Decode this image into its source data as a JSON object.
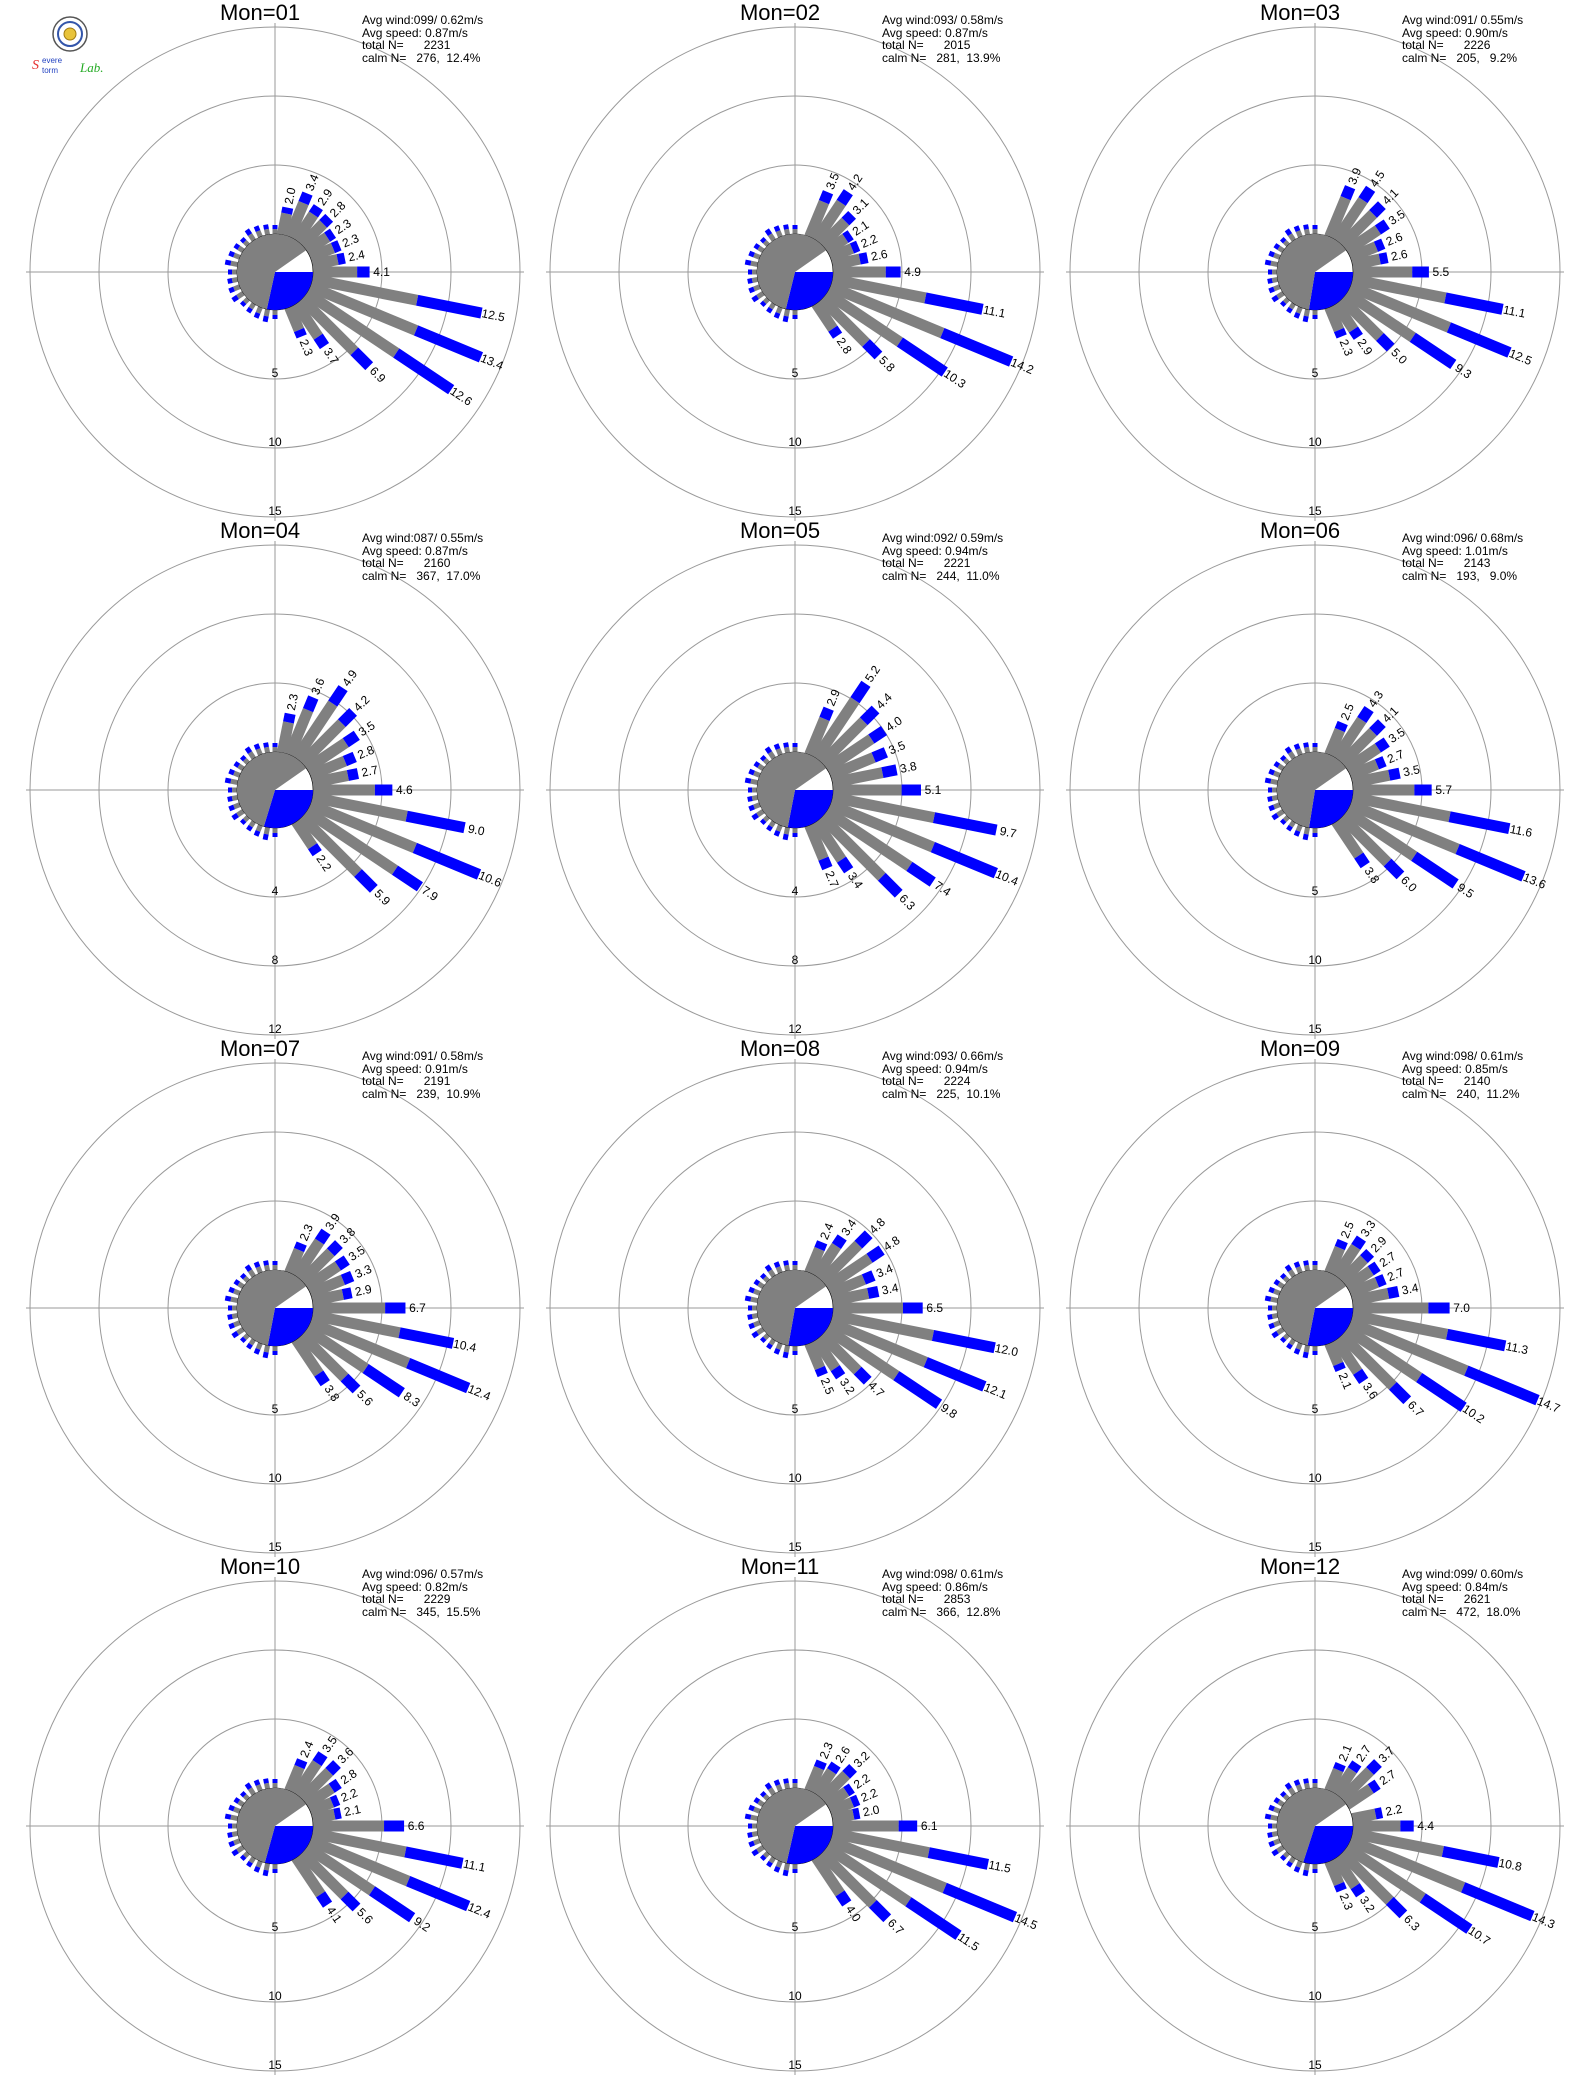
{
  "logo": {
    "text_a": "Severe",
    "text_b": "Storm",
    "text_c": "Lab."
  },
  "colors": {
    "speed_low": "#808080",
    "speed_mid": "#0000ff",
    "speed_high": "#00aa00",
    "ring": "#9a9a9a",
    "calm_gray": "#808080",
    "calm_blue": "#0000ff"
  },
  "chart_data": [
    {
      "type": "wind-rose",
      "title": "Mon=01",
      "stats": {
        "avg_wind": "Avg wind:099/ 0.62m/s",
        "avg_speed": "Avg speed: 0.87m/s",
        "total": "total N=      2231",
        "calm": "calm N=   276,  12.4%"
      },
      "rlim": [
        0,
        15
      ],
      "ring_labels": [
        "5",
        "10",
        "15"
      ],
      "directions_deg": [
        112.5,
        123.75,
        135,
        146.25,
        157.5,
        90,
        101.25,
        78.75,
        67.5,
        56.25,
        45,
        33.75,
        22.5,
        11.25
      ],
      "values": [
        13.4,
        12.6,
        6.9,
        3.7,
        2.3,
        4.1,
        12.5,
        2.4,
        2.3,
        2.3,
        2.8,
        2.9,
        3.4,
        2.0
      ],
      "labels": [
        "13.4",
        "12.6",
        "6.9",
        "3.7",
        "2.3",
        "4.1",
        "12.5",
        "2.4",
        "2.3",
        "2.3",
        "2.8",
        "2.9",
        "3.4",
        "2.0"
      ],
      "calm_pct": 12.4
    },
    {
      "type": "wind-rose",
      "title": "Mon=02",
      "stats": {
        "avg_wind": "Avg wind:093/ 0.58m/s",
        "avg_speed": "Avg speed: 0.87m/s",
        "total": "total N=      2015",
        "calm": "calm N=   281,  13.9%"
      },
      "rlim": [
        0,
        15
      ],
      "ring_labels": [
        "5",
        "10",
        "15"
      ],
      "directions_deg": [
        112.5,
        123.75,
        135,
        146.25,
        90,
        101.25,
        78.75,
        67.5,
        56.25,
        45,
        33.75,
        22.5
      ],
      "values": [
        14.2,
        10.3,
        5.8,
        2.8,
        4.9,
        11.1,
        2.6,
        2.2,
        2.1,
        3.1,
        4.2,
        3.5
      ],
      "labels": [
        "14.2",
        "10.3",
        "5.8",
        "2.8",
        "4.9",
        "11.1",
        "2.6",
        "2.2",
        "2.1",
        "3.1",
        "4.2",
        "3.5"
      ],
      "calm_pct": 13.9
    },
    {
      "type": "wind-rose",
      "title": "Mon=03",
      "stats": {
        "avg_wind": "Avg wind:091/ 0.55m/s",
        "avg_speed": "Avg speed: 0.90m/s",
        "total": "total N=      2226",
        "calm": "calm N=   205,   9.2%"
      },
      "rlim": [
        0,
        15
      ],
      "ring_labels": [
        "5",
        "10",
        "15"
      ],
      "directions_deg": [
        112.5,
        123.75,
        135,
        146.25,
        157.5,
        90,
        101.25,
        78.75,
        67.5,
        56.25,
        45,
        33.75,
        22.5
      ],
      "values": [
        12.5,
        9.3,
        5.0,
        2.9,
        2.3,
        5.5,
        11.1,
        2.6,
        2.6,
        3.5,
        4.1,
        4.5,
        3.9
      ],
      "labels": [
        "12.5",
        "9.3",
        "5.0",
        "2.9",
        "2.3",
        "5.5",
        "11.1",
        "2.6",
        "2.6",
        "3.5",
        "4.1",
        "4.5",
        "3.9"
      ],
      "calm_pct": 9.2
    },
    {
      "type": "wind-rose",
      "title": "Mon=04",
      "stats": {
        "avg_wind": "Avg wind:087/ 0.55m/s",
        "avg_speed": "Avg speed: 0.87m/s",
        "total": "total N=      2160",
        "calm": "calm N=   367,  17.0%"
      },
      "rlim": [
        0,
        12
      ],
      "ring_labels": [
        "4",
        "8",
        "12"
      ],
      "directions_deg": [
        112.5,
        123.75,
        135,
        146.25,
        90,
        101.25,
        78.75,
        67.5,
        56.25,
        45,
        33.75,
        22.5,
        11.25
      ],
      "values": [
        10.6,
        7.9,
        5.9,
        2.2,
        4.6,
        9.0,
        2.7,
        2.8,
        3.5,
        4.2,
        4.9,
        3.6,
        2.3
      ],
      "labels": [
        "10.6",
        "7.9",
        "5.9",
        "2.2",
        "4.6",
        "9.0",
        "2.7",
        "2.8",
        "3.5",
        "4.2",
        "4.9",
        "3.6",
        "2.3"
      ],
      "calm_pct": 17.0
    },
    {
      "type": "wind-rose",
      "title": "Mon=05",
      "stats": {
        "avg_wind": "Avg wind:092/ 0.59m/s",
        "avg_speed": "Avg speed: 0.94m/s",
        "total": "total N=      2221",
        "calm": "calm N=   244,  11.0%"
      },
      "rlim": [
        0,
        12
      ],
      "ring_labels": [
        "4",
        "8",
        "12"
      ],
      "directions_deg": [
        112.5,
        123.75,
        135,
        146.25,
        157.5,
        90,
        101.25,
        78.75,
        67.5,
        56.25,
        45,
        33.75,
        22.5
      ],
      "values": [
        10.4,
        7.4,
        6.3,
        3.4,
        2.7,
        5.1,
        9.7,
        3.8,
        3.5,
        4.0,
        4.4,
        5.2,
        2.9
      ],
      "labels": [
        "10.4",
        "7.4",
        "6.3",
        "3.4",
        "2.7",
        "5.1",
        "9.7",
        "3.8",
        "3.5",
        "4.0",
        "4.4",
        "5.2",
        "2.9"
      ],
      "calm_pct": 11.0
    },
    {
      "type": "wind-rose",
      "title": "Mon=06",
      "stats": {
        "avg_wind": "Avg wind:096/ 0.68m/s",
        "avg_speed": "Avg speed: 1.01m/s",
        "total": "total N=      2143",
        "calm": "calm N=   193,   9.0%"
      },
      "rlim": [
        0,
        15
      ],
      "ring_labels": [
        "5",
        "10",
        "15"
      ],
      "directions_deg": [
        112.5,
        123.75,
        135,
        146.25,
        90,
        101.25,
        78.75,
        67.5,
        56.25,
        45,
        33.75,
        22.5
      ],
      "values": [
        13.6,
        9.5,
        6.0,
        3.8,
        5.7,
        11.6,
        3.5,
        2.7,
        3.5,
        4.1,
        4.3,
        2.5
      ],
      "labels": [
        "13.6",
        "9.5",
        "6.0",
        "3.8",
        "5.7",
        "11.6",
        "3.5",
        "2.7",
        "3.5",
        "4.1",
        "4.3",
        "2.5"
      ],
      "calm_pct": 9.0
    },
    {
      "type": "wind-rose",
      "title": "Mon=07",
      "stats": {
        "avg_wind": "Avg wind:091/ 0.58m/s",
        "avg_speed": "Avg speed: 0.91m/s",
        "total": "total N=      2191",
        "calm": "calm N=   239,  10.9%"
      },
      "rlim": [
        0,
        15
      ],
      "ring_labels": [
        "5",
        "10",
        "15"
      ],
      "directions_deg": [
        112.5,
        123.75,
        135,
        146.25,
        90,
        101.25,
        78.75,
        67.5,
        56.25,
        45,
        33.75,
        22.5
      ],
      "values": [
        12.4,
        8.3,
        5.6,
        3.8,
        6.7,
        10.4,
        2.9,
        3.3,
        3.5,
        3.8,
        3.9,
        2.3
      ],
      "labels": [
        "12.4",
        "8.3",
        "5.6",
        "3.8",
        "6.7",
        "10.4",
        "2.9",
        "3.3",
        "3.5",
        "3.8",
        "3.9",
        "2.3"
      ],
      "calm_pct": 10.9
    },
    {
      "type": "wind-rose",
      "title": "Mon=08",
      "stats": {
        "avg_wind": "Avg wind:093/ 0.66m/s",
        "avg_speed": "Avg speed: 0.94m/s",
        "total": "total N=      2224",
        "calm": "calm N=   225,  10.1%"
      },
      "rlim": [
        0,
        15
      ],
      "ring_labels": [
        "5",
        "10",
        "15"
      ],
      "directions_deg": [
        112.5,
        123.75,
        135,
        146.25,
        157.5,
        90,
        101.25,
        78.75,
        67.5,
        56.25,
        45,
        33.75,
        22.5
      ],
      "values": [
        12.1,
        9.8,
        4.7,
        3.2,
        2.5,
        6.5,
        12.0,
        3.4,
        3.4,
        4.8,
        4.8,
        3.4,
        2.4
      ],
      "labels": [
        "12.1",
        "9.8",
        "4.7",
        "3.2",
        "2.5",
        "6.5",
        "12.0",
        "3.4",
        "3.4",
        "4.8",
        "4.8",
        "3.4",
        "2.4"
      ],
      "calm_pct": 10.1
    },
    {
      "type": "wind-rose",
      "title": "Mon=09",
      "stats": {
        "avg_wind": "Avg wind:098/ 0.61m/s",
        "avg_speed": "Avg speed: 0.85m/s",
        "total": "total N=      2140",
        "calm": "calm N=   240,  11.2%"
      },
      "rlim": [
        0,
        15
      ],
      "ring_labels": [
        "5",
        "10",
        "15"
      ],
      "directions_deg": [
        112.5,
        123.75,
        135,
        146.25,
        157.5,
        90,
        101.25,
        78.75,
        67.5,
        56.25,
        45,
        33.75,
        22.5
      ],
      "values": [
        14.7,
        10.2,
        6.7,
        3.6,
        2.1,
        7.0,
        11.3,
        3.4,
        2.7,
        2.7,
        2.9,
        3.3,
        2.5
      ],
      "labels": [
        "14.7",
        "10.2",
        "6.7",
        "3.6",
        "2.1",
        "7.0",
        "11.3",
        "3.4",
        "2.7",
        "2.7",
        "2.9",
        "3.3",
        "2.5"
      ],
      "calm_pct": 11.2
    },
    {
      "type": "wind-rose",
      "title": "Mon=10",
      "stats": {
        "avg_wind": "Avg wind:096/ 0.57m/s",
        "avg_speed": "Avg speed: 0.82m/s",
        "total": "total N=      2229",
        "calm": "calm N=   345,  15.5%"
      },
      "rlim": [
        0,
        15
      ],
      "ring_labels": [
        "5",
        "10",
        "15"
      ],
      "directions_deg": [
        112.5,
        123.75,
        135,
        146.25,
        90,
        101.25,
        78.75,
        67.5,
        56.25,
        45,
        33.75,
        22.5
      ],
      "values": [
        12.4,
        9.2,
        5.6,
        4.1,
        6.6,
        11.1,
        2.1,
        2.2,
        2.8,
        3.6,
        3.5,
        2.4
      ],
      "labels": [
        "12.4",
        "9.2",
        "5.6",
        "4.1",
        "6.6",
        "11.1",
        "2.1",
        "2.2",
        "2.8",
        "3.6",
        "3.5",
        "2.4"
      ],
      "calm_pct": 15.5
    },
    {
      "type": "wind-rose",
      "title": "Mon=11",
      "stats": {
        "avg_wind": "Avg wind:098/ 0.61m/s",
        "avg_speed": "Avg speed: 0.86m/s",
        "total": "total N=      2853",
        "calm": "calm N=   366,  12.8%"
      },
      "rlim": [
        0,
        15
      ],
      "ring_labels": [
        "5",
        "10",
        "15"
      ],
      "directions_deg": [
        112.5,
        123.75,
        135,
        146.25,
        90,
        101.25,
        78.75,
        67.5,
        56.25,
        45,
        33.75,
        22.5
      ],
      "values": [
        14.5,
        11.5,
        6.7,
        4.0,
        6.1,
        11.5,
        2.0,
        2.2,
        2.2,
        3.2,
        2.6,
        2.3
      ],
      "labels": [
        "14.5",
        "11.5",
        "6.7",
        "4.0",
        "6.1",
        "11.5",
        "2.0",
        "2.2",
        "2.2",
        "3.2",
        "2.6",
        "2.3"
      ],
      "calm_pct": 12.8
    },
    {
      "type": "wind-rose",
      "title": "Mon=12",
      "stats": {
        "avg_wind": "Avg wind:099/ 0.60m/s",
        "avg_speed": "Avg speed: 0.84m/s",
        "total": "total N=      2621",
        "calm": "calm N=   472,  18.0%"
      },
      "rlim": [
        0,
        15
      ],
      "ring_labels": [
        "5",
        "10",
        "15"
      ],
      "directions_deg": [
        112.5,
        123.75,
        135,
        146.25,
        157.5,
        90,
        101.25,
        78.75,
        56.25,
        45,
        33.75,
        22.5
      ],
      "values": [
        14.3,
        10.7,
        6.3,
        3.2,
        2.3,
        4.4,
        10.8,
        2.2,
        2.7,
        3.7,
        2.7,
        2.1
      ],
      "labels": [
        "14.3",
        "10.7",
        "6.3",
        "3.2",
        "2.3",
        "4.4",
        "10.8",
        "2.2",
        "2.7",
        "3.7",
        "2.7",
        "2.1"
      ],
      "calm_pct": 18.0
    }
  ]
}
